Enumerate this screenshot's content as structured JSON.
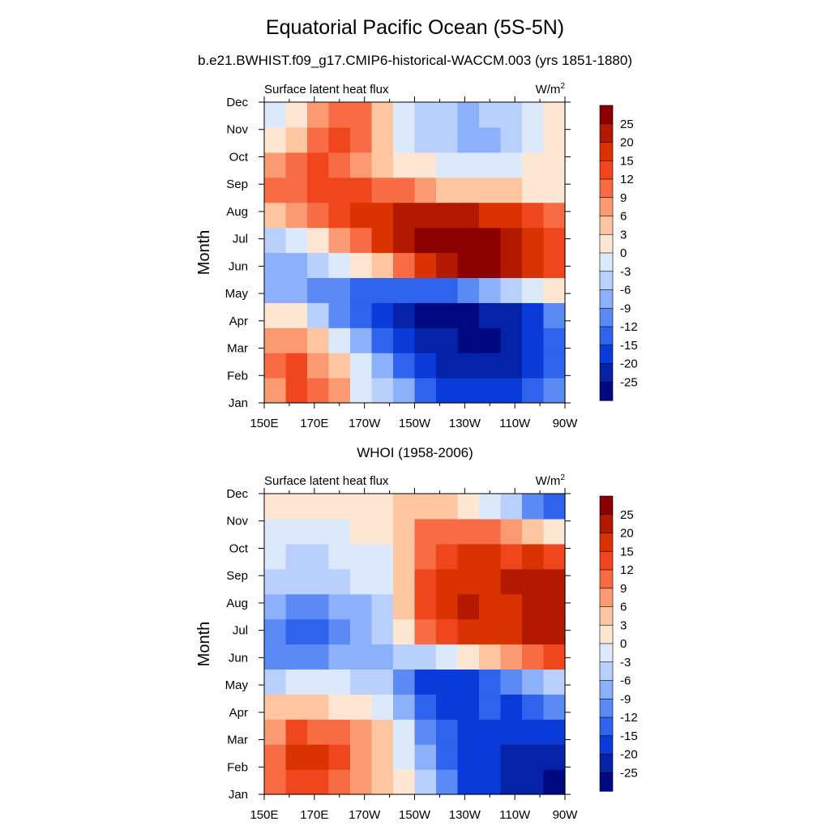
{
  "title": "Equatorial Pacific Ocean (5S-5N)",
  "subtitle": "b.e21.BWHIST.f09_g17.CMIP6-historical-WACCM.003 (yrs 1851-1880)",
  "chart_data": [
    {
      "type": "heatmap",
      "title": "",
      "left_label": "Surface latent heat flux",
      "units_base": "W/m",
      "units_exp": "2",
      "ylabel": "Month",
      "xlabel": "",
      "x_ticks": [
        "150E",
        "170E",
        "170W",
        "150W",
        "130W",
        "110W",
        "90W"
      ],
      "y_ticks": [
        "Jan",
        "Feb",
        "Mar",
        "Apr",
        "May",
        "Jun",
        "Jul",
        "Aug",
        "Sep",
        "Oct",
        "Nov",
        "Dec"
      ],
      "colorbar_levels": [
        "25",
        "20",
        "15",
        "12",
        "9",
        "6",
        "3",
        "0",
        "-3",
        "-6",
        "-9",
        "-12",
        "-15",
        "-20",
        "-25"
      ],
      "colorbar_colors": [
        "#8b0000",
        "#b21900",
        "#d93300",
        "#f0461e",
        "#f76c44",
        "#fb9a72",
        "#fdc5a0",
        "#fde6d2",
        "#dbe9fb",
        "#b8d0fb",
        "#8cb0fa",
        "#5b8af5",
        "#2f63ee",
        "#0a3bd8",
        "#0522a8",
        "#000a80"
      ],
      "values": [
        [
          6,
          13,
          11,
          8,
          -1,
          -5,
          -9,
          -13,
          -16,
          -19,
          -20,
          -19,
          -15,
          -10
        ],
        [
          11,
          13,
          8,
          3,
          -3,
          -9,
          -14,
          -18,
          -22,
          -24,
          -25,
          -23,
          -18,
          -13
        ],
        [
          8,
          8,
          3,
          -3,
          -9,
          -14,
          -19,
          -23,
          -25,
          -27,
          -27,
          -25,
          -20,
          -15
        ],
        [
          0,
          1,
          -4,
          -10,
          -15,
          -19,
          -23,
          -26,
          -27,
          -27,
          -25,
          -21,
          -16,
          -11
        ],
        [
          -8,
          -9,
          -11,
          -12,
          -13,
          -14,
          -15,
          -15,
          -14,
          -12,
          -9,
          -5,
          -2,
          2
        ],
        [
          -9,
          -8,
          -6,
          -3,
          1,
          5,
          10,
          16,
          22,
          25,
          26,
          22,
          16,
          12
        ],
        [
          -4,
          -2,
          2,
          6,
          11,
          16,
          21,
          25,
          28,
          29,
          27,
          22,
          17,
          12
        ],
        [
          3,
          6,
          9,
          12,
          15,
          18,
          21,
          22,
          22,
          21,
          18,
          15,
          12,
          9
        ],
        [
          9,
          11,
          13,
          14,
          13,
          11,
          9,
          7,
          5,
          4,
          3,
          3,
          2,
          2
        ],
        [
          8,
          10,
          13,
          11,
          8,
          5,
          2,
          0,
          -2,
          -3,
          -3,
          -2,
          0,
          2
        ],
        [
          2,
          5,
          10,
          13,
          11,
          4,
          -1,
          -4,
          -6,
          -8,
          -9,
          -6,
          -3,
          0
        ],
        [
          -1,
          2,
          6,
          10,
          9,
          3,
          -2,
          -5,
          -6,
          -7,
          -6,
          -4,
          -2,
          0
        ]
      ]
    },
    {
      "type": "heatmap",
      "title": "WHOI (1958-2006)",
      "left_label": "Surface latent heat flux",
      "units_base": "W/m",
      "units_exp": "2",
      "ylabel": "Month",
      "xlabel": "",
      "x_ticks": [
        "150E",
        "170E",
        "170W",
        "150W",
        "130W",
        "110W",
        "90W"
      ],
      "y_ticks": [
        "Jan",
        "Feb",
        "Mar",
        "Apr",
        "May",
        "Jun",
        "Jul",
        "Aug",
        "Sep",
        "Oct",
        "Nov",
        "Dec"
      ],
      "colorbar_levels": [
        "25",
        "20",
        "15",
        "12",
        "9",
        "6",
        "3",
        "0",
        "-3",
        "-6",
        "-9",
        "-12",
        "-15",
        "-20",
        "-25"
      ],
      "colorbar_colors": [
        "#8b0000",
        "#b21900",
        "#d93300",
        "#f0461e",
        "#f76c44",
        "#fb9a72",
        "#fdc5a0",
        "#fde6d2",
        "#dbe9fb",
        "#b8d0fb",
        "#8cb0fa",
        "#5b8af5",
        "#2f63ee",
        "#0a3bd8",
        "#0522a8",
        "#000a80"
      ],
      "values": [
        [
          9,
          14,
          13,
          11,
          8,
          4,
          0,
          -6,
          -12,
          -16,
          -19,
          -22,
          -24,
          -26
        ],
        [
          10,
          17,
          18,
          13,
          8,
          4,
          -1,
          -8,
          -14,
          -18,
          -20,
          -22,
          -23,
          -23
        ],
        [
          7,
          12,
          11,
          9,
          6,
          3,
          -2,
          -10,
          -15,
          -17,
          -17,
          -18,
          -18,
          -17
        ],
        [
          3,
          4,
          3,
          2,
          1,
          -1,
          -8,
          -15,
          -17,
          -16,
          -15,
          -16,
          -15,
          -12
        ],
        [
          -4,
          -3,
          -3,
          -3,
          -4,
          -6,
          -10,
          -17,
          -18,
          -17,
          -14,
          -12,
          -9,
          -4
        ],
        [
          -11,
          -12,
          -10,
          -9,
          -8,
          -8,
          -6,
          -4,
          -1,
          2,
          5,
          8,
          11,
          13
        ],
        [
          -10,
          -13,
          -14,
          -10,
          -9,
          -6,
          1,
          9,
          13,
          18,
          17,
          19,
          20,
          21
        ],
        [
          -9,
          -11,
          -12,
          -9,
          -7,
          -4,
          4,
          13,
          17,
          20,
          19,
          19,
          20,
          20
        ],
        [
          -5,
          -6,
          -5,
          -4,
          -3,
          -2,
          4,
          13,
          15,
          18,
          17,
          20,
          22,
          24
        ],
        [
          -3,
          -4,
          -4,
          -3,
          -3,
          -2,
          3,
          11,
          14,
          16,
          15,
          14,
          15,
          13
        ],
        [
          -1,
          -2,
          -1,
          -1,
          0,
          1,
          5,
          9,
          10,
          11,
          9,
          6,
          3,
          0
        ],
        [
          0,
          1,
          1,
          1,
          2,
          2,
          3,
          4,
          3,
          0,
          -3,
          -6,
          -10,
          -14
        ]
      ]
    }
  ]
}
